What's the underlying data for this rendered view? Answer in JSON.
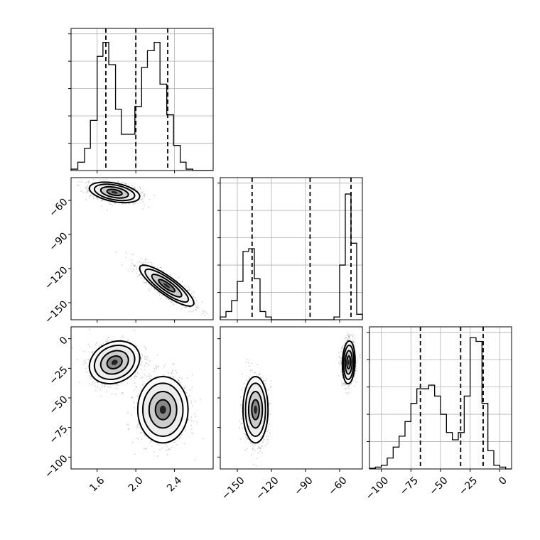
{
  "chart_data": {
    "type": "corner",
    "parameters": [
      {
        "id": "p0",
        "range": [
          1.33,
          2.8
        ],
        "ticks": [
          1.6,
          2.0,
          2.4
        ],
        "tick_labels": [
          "1.6",
          "2.0",
          "2.4"
        ],
        "quantiles": [
          1.69,
          2.0,
          2.33
        ]
      },
      {
        "id": "p1",
        "range": [
          -165,
          -40
        ],
        "ticks": [
          -150,
          -120,
          -90,
          -60
        ],
        "tick_labels": [
          "−150",
          "−120",
          "−90",
          "−60"
        ],
        "quantiles": [
          -137,
          -86,
          -50
        ]
      },
      {
        "id": "p2",
        "range": [
          -110,
          10
        ],
        "ticks": [
          -100,
          -75,
          -50,
          -25,
          0
        ],
        "tick_labels": [
          "−100",
          "−75",
          "−50",
          "−25",
          "0"
        ],
        "quantiles": [
          -67,
          -33,
          -14
        ]
      }
    ],
    "histograms": [
      {
        "param": "p0",
        "ymax": 5.1,
        "edges": [
          1.33,
          1.4,
          1.47,
          1.53,
          1.6,
          1.66,
          1.72,
          1.79,
          1.85,
          1.92,
          1.99,
          2.06,
          2.12,
          2.19,
          2.25,
          2.32,
          2.39,
          2.46,
          2.52,
          2.59,
          2.66,
          2.73,
          2.8
        ],
        "counts": [
          0.05,
          0.3,
          0.8,
          1.8,
          4.1,
          4.6,
          3.8,
          2.2,
          1.3,
          1.3,
          2.3,
          3.7,
          4.3,
          4.6,
          3.1,
          2.0,
          0.9,
          0.3,
          0.05,
          0.0,
          0.0,
          0.0
        ]
      },
      {
        "param": "p1",
        "ymax": 5.2,
        "edges": [
          -165,
          -160,
          -155,
          -150,
          -145,
          -140,
          -135,
          -130,
          -125,
          -120,
          -115,
          -110,
          -105,
          -100,
          -95,
          -90,
          -85,
          -80,
          -75,
          -70,
          -65,
          -60,
          -55,
          -50,
          -45,
          -40
        ],
        "counts": [
          0.1,
          0.3,
          0.7,
          1.4,
          2.5,
          2.6,
          1.5,
          0.3,
          0.1,
          0.0,
          0.0,
          0.0,
          0.0,
          0.0,
          0.0,
          0.0,
          0.0,
          0.0,
          0.0,
          0.0,
          0.1,
          2.0,
          4.6,
          2.8,
          0.2
        ]
      },
      {
        "param": "p2",
        "ymax": 3.9,
        "edges": [
          -110,
          -105,
          -100,
          -95,
          -90,
          -85,
          -80,
          -75,
          -70,
          -65,
          -60,
          -55,
          -50,
          -45,
          -40,
          -35,
          -30,
          -25,
          -20,
          -15,
          -10,
          -5,
          0,
          5,
          10
        ],
        "counts": [
          0.02,
          0.05,
          0.1,
          0.3,
          0.6,
          0.9,
          1.3,
          1.8,
          2.2,
          2.2,
          2.3,
          2.0,
          1.5,
          1.0,
          0.8,
          1.0,
          2.0,
          3.6,
          3.5,
          1.8,
          0.5,
          0.1,
          0.05,
          0.0
        ]
      }
    ],
    "joint": [
      {
        "x": "p0",
        "y": "p1",
        "modes": [
          {
            "cx": 1.78,
            "cy": -53,
            "sx": 0.13,
            "sy": 4.5,
            "rho": -0.4,
            "weight": 0.5
          },
          {
            "cx": 2.32,
            "cy": -135,
            "sx": 0.14,
            "sy": 9,
            "rho": -0.85,
            "weight": 0.5
          }
        ]
      },
      {
        "x": "p0",
        "y": "p2",
        "modes": [
          {
            "cx": 1.78,
            "cy": -20,
            "sx": 0.13,
            "sy": 9,
            "rho": 0.2,
            "weight": 0.5
          },
          {
            "cx": 2.28,
            "cy": -60,
            "sx": 0.13,
            "sy": 14,
            "rho": 0.0,
            "weight": 0.5
          }
        ]
      },
      {
        "x": "p1",
        "y": "p2",
        "modes": [
          {
            "cx": -134,
            "cy": -60,
            "sx": 5.5,
            "sy": 14,
            "rho": 0.0,
            "weight": 0.5
          },
          {
            "cx": -52,
            "cy": -20,
            "sx": 2.8,
            "sy": 9,
            "rho": 0.1,
            "weight": 0.5
          }
        ]
      }
    ]
  }
}
